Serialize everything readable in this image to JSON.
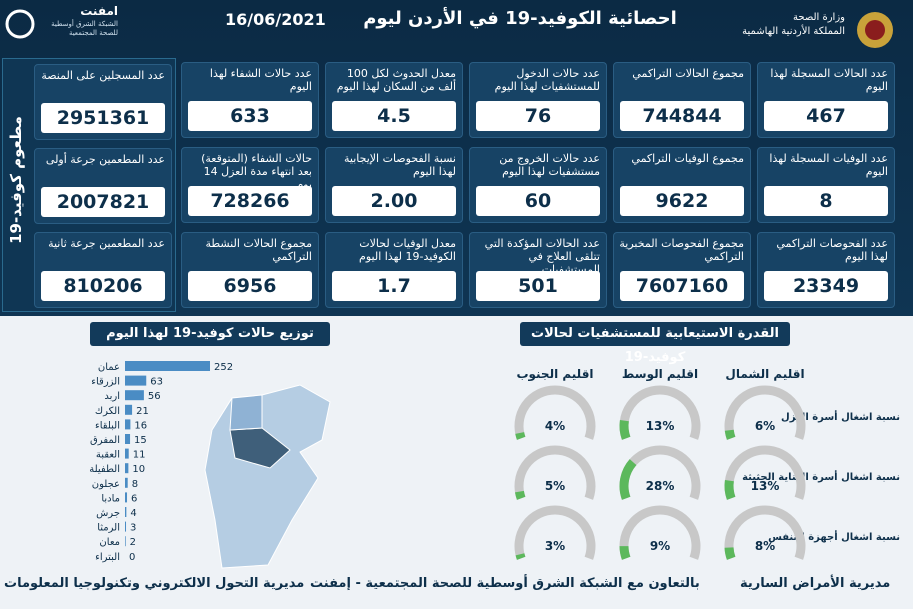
{
  "header": {
    "title": "احصائية الكوفيد-19 في الأردن ليوم",
    "date": "16/06/2021",
    "ministry": "وزارة الصحة",
    "kingdom": "المملكة الأردنية الهاشمية",
    "partner_name": "امفنت",
    "partner_subtitle": "الشبكة الشرق أوسطية للصحة المجتمعية"
  },
  "stats": [
    {
      "label": "عدد الحالات المسجلة لهذا اليوم",
      "value": "467"
    },
    {
      "label": "مجموع الحالات التراكمي",
      "value": "744844"
    },
    {
      "label": "عدد حالات الدخول للمستشفيات لهذا اليوم",
      "value": "76"
    },
    {
      "label": "معدل الحدوث لكل 100 ألف من السكان لهذا اليوم",
      "value": "4.5"
    },
    {
      "label": "عدد حالات الشفاء لهذا اليوم",
      "value": "633"
    },
    {
      "label": "عدد الوفيات المسجلة لهذا اليوم",
      "value": "8"
    },
    {
      "label": "مجموع الوفيات التراكمي",
      "value": "9622"
    },
    {
      "label": "عدد حالات الخروج من مستشفيات لهذا اليوم",
      "value": "60"
    },
    {
      "label": "نسبة الفحوصات الإيجابية لهذا اليوم",
      "value": "2.00"
    },
    {
      "label": "حالات الشفاء (المتوقعة) بعد انتهاء مدة العزل 14 يوم",
      "value": "728266"
    },
    {
      "label": "عدد الفحوصات التراكمي لهذا اليوم",
      "value": "23349"
    },
    {
      "label": "مجموع الفحوصات المخبرية التراكمي",
      "value": "7607160"
    },
    {
      "label": "عدد الحالات المؤكدة التي تتلقى العلاج في المستشفيات",
      "value": "501"
    },
    {
      "label": "معدل الوفيات لحالات الكوفيد-19 لهذا اليوم",
      "value": "1.7"
    },
    {
      "label": "مجموع الحالات النشطة التراكمي",
      "value": "6956"
    }
  ],
  "vaccination": {
    "title": "مطعوم كوفيد-19",
    "items": [
      {
        "label": "عدد المسجلين على المنصة",
        "value": "2951361"
      },
      {
        "label": "عدد المطعمين جرعة أولى",
        "value": "2007821"
      },
      {
        "label": "عدد المطعمين جرعة ثانية",
        "value": "810206"
      }
    ]
  },
  "chart_data": [
    {
      "type": "bar",
      "title": "توزيع حالات كوفيد-19 لهذا اليوم",
      "categories": [
        "عمان",
        "الزرقاء",
        "اربد",
        "الكرك",
        "البلقاء",
        "المفرق",
        "العقبة",
        "الطفيلة",
        "عجلون",
        "مادبا",
        "جرش",
        "الرمثا",
        "معان",
        "البتراء"
      ],
      "values": [
        252,
        63,
        56,
        21,
        16,
        15,
        11,
        10,
        8,
        6,
        4,
        3,
        2,
        0
      ],
      "color": "#4a8cc4"
    },
    {
      "type": "gauge",
      "title": "القدرة الاستيعابية للمستشفيات لحالات كوفيد-19",
      "categories": [
        "اقليم الشمال",
        "اقليم الوسط",
        "اقليم الجنوب"
      ],
      "color": "#5cb85c",
      "series": [
        {
          "name": "نسبة اشغال أسرة العزل",
          "values": [
            6,
            13,
            4
          ],
          "value_labels": [
            "6%",
            "13%",
            "4%"
          ]
        },
        {
          "name": "نسبة اشغال أسرة العناية الحثيثة",
          "values": [
            13,
            28,
            5
          ],
          "value_labels": [
            "13%",
            "28%",
            "5%"
          ]
        },
        {
          "name": "نسبة اشغال أجهزة التنفس",
          "values": [
            8,
            9,
            3
          ],
          "value_labels": [
            "8%",
            "9%",
            "3%"
          ]
        }
      ]
    }
  ],
  "footer": {
    "left": "مديرية التحول الالكتروني وتكنولوجيا المعلومات",
    "center": "بالتعاون مع الشبكة الشرق أوسطية للصحة المجتمعية - إمفنت",
    "right": "مديرية الأمراض السارية"
  }
}
